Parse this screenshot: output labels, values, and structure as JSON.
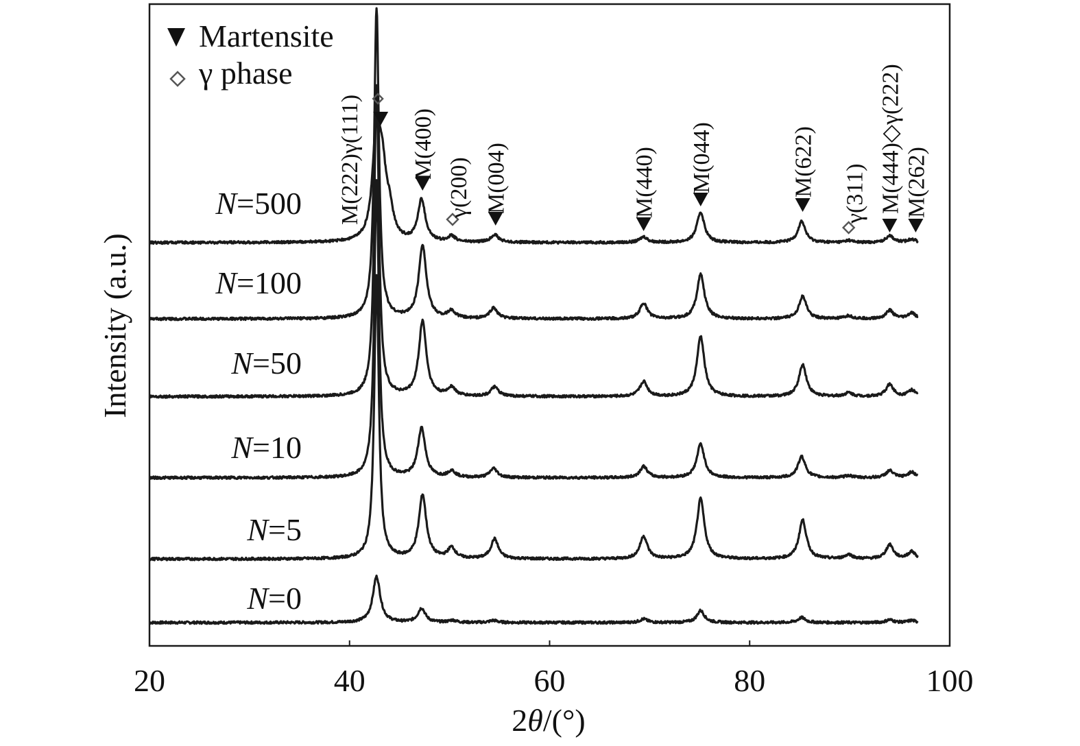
{
  "chart_data": {
    "type": "line",
    "xlabel": "2θ/(°)",
    "ylabel": "Intensity (a.u.)",
    "xlim": [
      20,
      100
    ],
    "x_ticks": [
      20,
      40,
      60,
      80,
      100
    ],
    "grid": false,
    "legend": {
      "placement": "top-left",
      "items": [
        {
          "label": "Martensite",
          "marker": "filled-down-triangle"
        },
        {
          "label": "γ phase",
          "marker": "open-diamond"
        }
      ]
    },
    "colors": {
      "line": "#1a1a1a",
      "marker": "#111111",
      "open_marker": "#555555"
    },
    "series": [
      {
        "name": "N=0",
        "prefix": "N",
        "value": "=0",
        "baseline": 0,
        "peaks": [
          {
            "x": 42.7,
            "h": 6.5
          },
          {
            "x": 47.2,
            "h": 2.0
          },
          {
            "x": 50.3,
            "h": 0.3
          },
          {
            "x": 54.4,
            "h": 0.3
          },
          {
            "x": 69.4,
            "h": 0.5
          },
          {
            "x": 75.1,
            "h": 1.7
          },
          {
            "x": 85.2,
            "h": 0.7
          },
          {
            "x": 94.0,
            "h": 0.4
          },
          {
            "x": 96.2,
            "h": 0.3
          }
        ]
      },
      {
        "name": "N=5",
        "prefix": "N",
        "value": "=5",
        "baseline": 9.0,
        "peaks": [
          {
            "x": 42.7,
            "h": 40.0
          },
          {
            "x": 47.3,
            "h": 9.0
          },
          {
            "x": 50.2,
            "h": 1.5
          },
          {
            "x": 54.5,
            "h": 2.8
          },
          {
            "x": 69.4,
            "h": 3.2
          },
          {
            "x": 75.1,
            "h": 8.5
          },
          {
            "x": 85.3,
            "h": 5.5
          },
          {
            "x": 89.9,
            "h": 0.6
          },
          {
            "x": 94.0,
            "h": 2.0
          },
          {
            "x": 96.2,
            "h": 1.0
          }
        ]
      },
      {
        "name": "N=10",
        "prefix": "N",
        "value": "=10",
        "baseline": 20.5,
        "peaks": [
          {
            "x": 42.7,
            "h": 42.0
          },
          {
            "x": 47.2,
            "h": 7.0
          },
          {
            "x": 50.2,
            "h": 0.9
          },
          {
            "x": 54.4,
            "h": 1.3
          },
          {
            "x": 69.4,
            "h": 1.6
          },
          {
            "x": 75.1,
            "h": 4.8
          },
          {
            "x": 85.2,
            "h": 3.0
          },
          {
            "x": 89.9,
            "h": 0.3
          },
          {
            "x": 94.0,
            "h": 1.0
          },
          {
            "x": 96.2,
            "h": 0.8
          }
        ]
      },
      {
        "name": "N=50",
        "prefix": "N",
        "value": "=50",
        "baseline": 32.0,
        "peaks": [
          {
            "x": 42.7,
            "h": 44.0
          },
          {
            "x": 47.3,
            "h": 10.6
          },
          {
            "x": 50.2,
            "h": 1.2
          },
          {
            "x": 54.5,
            "h": 1.3
          },
          {
            "x": 69.4,
            "h": 2.1
          },
          {
            "x": 75.1,
            "h": 8.5
          },
          {
            "x": 85.3,
            "h": 4.5
          },
          {
            "x": 89.9,
            "h": 0.5
          },
          {
            "x": 94.0,
            "h": 1.7
          },
          {
            "x": 96.2,
            "h": 0.9
          }
        ]
      },
      {
        "name": "N=100",
        "prefix": "N",
        "value": "=100",
        "baseline": 43.0,
        "peaks": [
          {
            "x": 42.7,
            "h": 44.0
          },
          {
            "x": 47.3,
            "h": 10.4
          },
          {
            "x": 50.2,
            "h": 1.0
          },
          {
            "x": 54.4,
            "h": 1.5
          },
          {
            "x": 69.4,
            "h": 2.2
          },
          {
            "x": 75.1,
            "h": 6.3
          },
          {
            "x": 85.3,
            "h": 3.2
          },
          {
            "x": 89.9,
            "h": 0.4
          },
          {
            "x": 94.0,
            "h": 1.2
          },
          {
            "x": 96.2,
            "h": 0.8
          }
        ]
      },
      {
        "name": "N=500",
        "prefix": "N",
        "value": "=500",
        "baseline": 53.8,
        "peaks": [
          {
            "x": 42.7,
            "h": 15.5
          },
          {
            "x": 43.3,
            "h": 8.0
          },
          {
            "x": 44.0,
            "h": 3.5
          },
          {
            "x": 47.2,
            "h": 5.9
          },
          {
            "x": 50.2,
            "h": 0.8
          },
          {
            "x": 54.5,
            "h": 1.1
          },
          {
            "x": 69.4,
            "h": 0.8
          },
          {
            "x": 75.1,
            "h": 4.3
          },
          {
            "x": 85.2,
            "h": 3.0
          },
          {
            "x": 89.9,
            "h": 0.3
          },
          {
            "x": 94.0,
            "h": 1.0
          },
          {
            "x": 96.2,
            "h": 0.5
          }
        ]
      }
    ],
    "annotations": [
      {
        "text": "M(222)γ(111)",
        "x": 42.7,
        "marker": "both"
      },
      {
        "text": "M(400)",
        "x": 47.3,
        "marker": "filled-down-triangle"
      },
      {
        "text": "γ(200)",
        "x": 50.3,
        "marker": "open-diamond"
      },
      {
        "text": "M(004)",
        "x": 54.6,
        "marker": "filled-down-triangle"
      },
      {
        "text": "M(440)",
        "x": 69.4,
        "marker": "filled-down-triangle"
      },
      {
        "text": "M(044)",
        "x": 75.1,
        "marker": "filled-down-triangle"
      },
      {
        "text": "M(622)",
        "x": 85.3,
        "marker": "filled-down-triangle"
      },
      {
        "text": "γ(311)",
        "x": 89.9,
        "marker": "open-diamond"
      },
      {
        "text": "M(444)◇γ(222)",
        "x": 94.0,
        "marker": "filled-down-triangle"
      },
      {
        "text": "M(262)",
        "x": 96.6,
        "marker": "filled-down-triangle"
      }
    ]
  }
}
